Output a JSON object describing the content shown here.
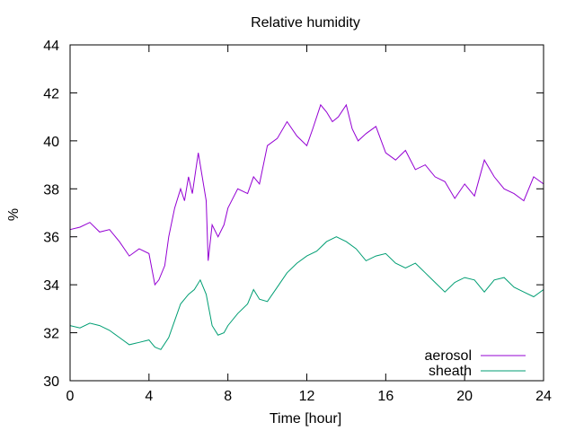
{
  "chart_data": {
    "type": "line",
    "title": "Relative humidity",
    "xlabel": "Time [hour]",
    "ylabel": "%",
    "xlim": [
      0,
      24
    ],
    "ylim": [
      30,
      44
    ],
    "xticks": [
      0,
      4,
      8,
      12,
      16,
      20,
      24
    ],
    "yticks": [
      30,
      32,
      34,
      36,
      38,
      40,
      42,
      44
    ],
    "grid": false,
    "legend_position": "bottom-right",
    "series": [
      {
        "name": "aerosol",
        "color": "#9400d3",
        "x": [
          0,
          0.5,
          1,
          1.5,
          2,
          2.5,
          3,
          3.5,
          4,
          4.3,
          4.5,
          4.8,
          5,
          5.3,
          5.6,
          5.8,
          6,
          6.2,
          6.5,
          6.7,
          6.9,
          7,
          7.2,
          7.5,
          7.8,
          8,
          8.5,
          9,
          9.3,
          9.6,
          10,
          10.5,
          11,
          11.5,
          12,
          12.3,
          12.7,
          13,
          13.3,
          13.6,
          14,
          14.3,
          14.6,
          15,
          15.5,
          16,
          16.5,
          17,
          17.5,
          18,
          18.5,
          19,
          19.5,
          20,
          20.5,
          21,
          21.5,
          22,
          22.5,
          23,
          23.5,
          24
        ],
        "values": [
          36.3,
          36.4,
          36.6,
          36.2,
          36.3,
          35.8,
          35.2,
          35.5,
          35.3,
          34.0,
          34.2,
          34.8,
          36.0,
          37.2,
          38.0,
          37.5,
          38.5,
          37.8,
          39.5,
          38.5,
          37.5,
          35.0,
          36.5,
          36.0,
          36.5,
          37.2,
          38.0,
          37.8,
          38.5,
          38.2,
          39.8,
          40.1,
          40.8,
          40.2,
          39.8,
          40.5,
          41.5,
          41.2,
          40.8,
          41.0,
          41.5,
          40.5,
          40.0,
          40.3,
          40.6,
          39.5,
          39.2,
          39.6,
          38.8,
          39.0,
          38.5,
          38.3,
          37.6,
          38.2,
          37.7,
          39.2,
          38.5,
          38.0,
          37.8,
          37.5,
          38.5,
          38.2
        ]
      },
      {
        "name": "sheath",
        "color": "#009e73",
        "x": [
          0,
          0.5,
          1,
          1.5,
          2,
          2.5,
          3,
          3.5,
          4,
          4.3,
          4.6,
          5,
          5.3,
          5.6,
          6,
          6.3,
          6.6,
          6.9,
          7.2,
          7.5,
          7.8,
          8,
          8.5,
          9,
          9.3,
          9.6,
          10,
          10.5,
          11,
          11.5,
          12,
          12.5,
          13,
          13.5,
          14,
          14.5,
          15,
          15.5,
          16,
          16.5,
          17,
          17.5,
          18,
          18.5,
          19,
          19.5,
          20,
          20.5,
          21,
          21.5,
          22,
          22.5,
          23,
          23.5,
          24
        ],
        "values": [
          32.3,
          32.2,
          32.4,
          32.3,
          32.1,
          31.8,
          31.5,
          31.6,
          31.7,
          31.4,
          31.3,
          31.8,
          32.5,
          33.2,
          33.6,
          33.8,
          34.2,
          33.6,
          32.3,
          31.9,
          32.0,
          32.3,
          32.8,
          33.2,
          33.8,
          33.4,
          33.3,
          33.9,
          34.5,
          34.9,
          35.2,
          35.4,
          35.8,
          36.0,
          35.8,
          35.5,
          35.0,
          35.2,
          35.3,
          34.9,
          34.7,
          34.9,
          34.5,
          34.1,
          33.7,
          34.1,
          34.3,
          34.2,
          33.7,
          34.2,
          34.3,
          33.9,
          33.7,
          33.5,
          33.8
        ]
      }
    ]
  }
}
